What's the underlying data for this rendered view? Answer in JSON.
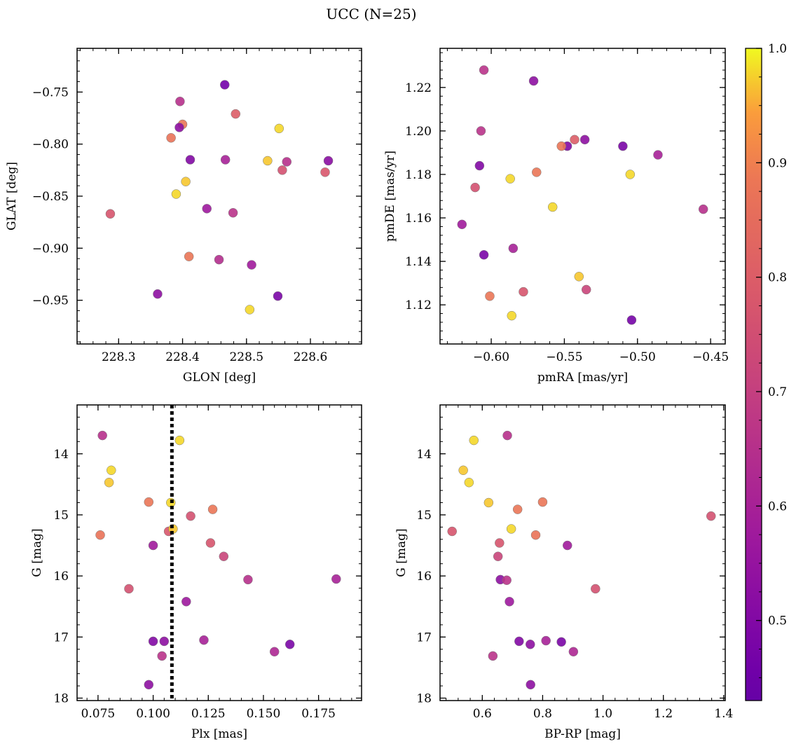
{
  "title": "UCC (N=25)",
  "colorbar": {
    "min": 0.43,
    "max": 1.0,
    "ticks": [
      "0.5",
      "0.6",
      "0.7",
      "0.8",
      "0.9",
      "1.0"
    ],
    "tick_values": [
      0.5,
      0.6,
      0.7,
      0.8,
      0.9,
      1.0
    ],
    "colormap": "plasma"
  },
  "chart_data": [
    {
      "type": "scatter",
      "xlabel": "GLON [deg]",
      "ylabel": "GLAT [deg]",
      "xlim": [
        228.235,
        228.68
      ],
      "ylim": [
        -0.992,
        -0.708
      ],
      "y_inverted": false,
      "xticks": [
        228.3,
        228.4,
        228.5,
        228.6
      ],
      "xtick_labels": [
        "228.3",
        "228.4",
        "228.5",
        "228.6"
      ],
      "yticks": [
        -0.75,
        -0.8,
        -0.85,
        -0.9,
        -0.95
      ],
      "ytick_labels": [
        "−0.75",
        "−0.80",
        "−0.85",
        "−0.90",
        "−0.95"
      ],
      "x": [
        228.466,
        228.396,
        228.483,
        228.4,
        228.382,
        228.395,
        228.551,
        228.412,
        228.467,
        228.533,
        228.563,
        228.628,
        228.556,
        228.623,
        228.405,
        228.39,
        228.287,
        228.438,
        228.479,
        228.41,
        228.457,
        228.508,
        228.361,
        228.549,
        228.505
      ],
      "y": [
        -0.743,
        -0.759,
        -0.771,
        -0.781,
        -0.794,
        -0.784,
        -0.785,
        -0.815,
        -0.815,
        -0.816,
        -0.817,
        -0.816,
        -0.825,
        -0.827,
        -0.836,
        -0.848,
        -0.867,
        -0.862,
        -0.866,
        -0.908,
        -0.911,
        -0.916,
        -0.944,
        -0.946,
        -0.959
      ],
      "c": [
        0.46,
        0.65,
        0.8,
        0.88,
        0.87,
        0.53,
        0.98,
        0.5,
        0.6,
        0.97,
        0.65,
        0.52,
        0.76,
        0.78,
        0.97,
        0.98,
        0.77,
        0.57,
        0.66,
        0.88,
        0.64,
        0.58,
        0.53,
        0.48,
        0.98
      ]
    },
    {
      "type": "scatter",
      "xlabel": "pmRA [mas/yr]",
      "ylabel": "pmDE [mas/yr]",
      "xlim": [
        -0.635,
        -0.44
      ],
      "ylim": [
        1.102,
        1.238
      ],
      "y_inverted": false,
      "xticks": [
        -0.6,
        -0.55,
        -0.5,
        -0.45
      ],
      "xtick_labels": [
        "−0.60",
        "−0.55",
        "−0.50",
        "−0.45"
      ],
      "yticks": [
        1.12,
        1.14,
        1.16,
        1.18,
        1.2,
        1.22
      ],
      "ytick_labels": [
        "1.12",
        "1.14",
        "1.16",
        "1.18",
        "1.20",
        "1.22"
      ],
      "x": [
        -0.605,
        -0.571,
        -0.607,
        -0.543,
        -0.536,
        -0.548,
        -0.552,
        -0.51,
        -0.486,
        -0.608,
        -0.569,
        -0.505,
        -0.587,
        -0.611,
        -0.558,
        -0.62,
        -0.455,
        -0.605,
        -0.585,
        -0.54,
        -0.535,
        -0.578,
        -0.601,
        -0.586,
        -0.504
      ],
      "y": [
        1.228,
        1.223,
        1.2,
        1.196,
        1.196,
        1.193,
        1.193,
        1.193,
        1.189,
        1.184,
        1.181,
        1.18,
        1.178,
        1.174,
        1.165,
        1.157,
        1.164,
        1.143,
        1.146,
        1.133,
        1.127,
        1.126,
        1.124,
        1.115,
        1.113
      ],
      "c": [
        0.66,
        0.53,
        0.66,
        0.8,
        0.53,
        0.5,
        0.88,
        0.48,
        0.6,
        0.5,
        0.88,
        0.98,
        0.98,
        0.76,
        0.98,
        0.58,
        0.65,
        0.48,
        0.6,
        0.97,
        0.72,
        0.77,
        0.88,
        0.98,
        0.47
      ]
    },
    {
      "type": "scatter",
      "xlabel": "Plx [mas]",
      "ylabel": "G [mag]",
      "xlim": [
        0.0655,
        0.1945
      ],
      "ylim": [
        18.04,
        13.2
      ],
      "y_inverted": true,
      "xticks": [
        0.075,
        0.1,
        0.125,
        0.15,
        0.175
      ],
      "xtick_labels": [
        "0.075",
        "0.100",
        "0.125",
        "0.150",
        "0.175"
      ],
      "yticks": [
        14,
        15,
        16,
        17,
        18
      ],
      "ytick_labels": [
        "14",
        "15",
        "16",
        "17",
        "18"
      ],
      "vline": {
        "x": 0.1085,
        "style": "dotted"
      },
      "x": [
        0.077,
        0.112,
        0.081,
        0.08,
        0.098,
        0.108,
        0.127,
        0.117,
        0.076,
        0.107,
        0.109,
        0.1,
        0.126,
        0.132,
        0.143,
        0.183,
        0.089,
        0.115,
        0.1,
        0.105,
        0.123,
        0.162,
        0.155,
        0.104,
        0.098
      ],
      "y": [
        13.7,
        13.78,
        14.27,
        14.47,
        14.79,
        14.8,
        14.91,
        15.02,
        15.33,
        15.27,
        15.23,
        15.5,
        15.46,
        15.68,
        16.06,
        16.05,
        16.21,
        16.42,
        17.07,
        17.07,
        17.05,
        17.12,
        17.24,
        17.31,
        17.78
      ],
      "c": [
        0.65,
        0.98,
        0.98,
        0.97,
        0.88,
        0.98,
        0.88,
        0.76,
        0.87,
        0.78,
        0.97,
        0.58,
        0.77,
        0.72,
        0.65,
        0.6,
        0.76,
        0.57,
        0.5,
        0.53,
        0.6,
        0.48,
        0.62,
        0.66,
        0.53
      ]
    },
    {
      "type": "scatter",
      "xlabel": "BP-RP [mag]",
      "ylabel": "G [mag]",
      "xlim": [
        0.46,
        1.405
      ],
      "ylim": [
        18.04,
        13.2
      ],
      "y_inverted": true,
      "xticks": [
        0.6,
        0.8,
        1.0,
        1.2,
        1.4
      ],
      "xtick_labels": [
        "0.6",
        "0.8",
        "1.0",
        "1.2",
        "1.4"
      ],
      "yticks": [
        14,
        15,
        16,
        17,
        18
      ],
      "ytick_labels": [
        "14",
        "15",
        "16",
        "17",
        "18"
      ],
      "x": [
        0.683,
        0.572,
        0.537,
        0.556,
        0.621,
        0.8,
        0.717,
        1.358,
        0.5,
        0.696,
        0.657,
        0.882,
        0.777,
        0.652,
        0.66,
        0.681,
        0.975,
        0.69,
        0.722,
        0.759,
        0.811,
        0.862,
        0.902,
        0.635,
        0.76
      ],
      "y": [
        13.7,
        13.78,
        14.27,
        14.47,
        14.8,
        14.79,
        14.91,
        15.02,
        15.27,
        15.23,
        15.46,
        15.5,
        15.33,
        15.68,
        16.06,
        16.07,
        16.21,
        16.42,
        17.07,
        17.12,
        17.06,
        17.08,
        17.24,
        17.31,
        17.78
      ],
      "c": [
        0.65,
        0.98,
        0.97,
        0.98,
        0.97,
        0.88,
        0.88,
        0.76,
        0.77,
        0.98,
        0.77,
        0.58,
        0.87,
        0.72,
        0.53,
        0.66,
        0.76,
        0.57,
        0.5,
        0.53,
        0.6,
        0.48,
        0.62,
        0.66,
        0.53
      ]
    }
  ]
}
